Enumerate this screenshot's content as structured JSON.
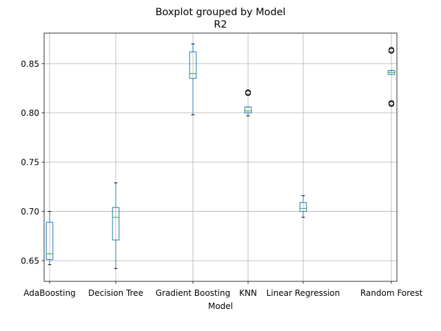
{
  "chart_data": {
    "type": "boxplot",
    "suptitle": "Boxplot grouped by Model",
    "title": "R2",
    "xlabel": "Model",
    "ylabel": "",
    "ylim": [
      0.629,
      0.881
    ],
    "yticks": [
      0.65,
      0.7,
      0.75,
      0.8,
      0.85
    ],
    "ytick_labels": [
      "0.65",
      "0.70",
      "0.75",
      "0.80",
      "0.85"
    ],
    "grid": true,
    "categories": [
      "AdaBoosting",
      "Decision Tree",
      "Gradient Boosting",
      "KNN",
      "Linear Regression",
      "Random Forest"
    ],
    "boxes": [
      {
        "name": "AdaBoosting",
        "whisker_low": 0.646,
        "q1": 0.651,
        "median": 0.657,
        "q3": 0.689,
        "whisker_high": 0.7,
        "outliers": []
      },
      {
        "name": "Decision Tree",
        "whisker_low": 0.642,
        "q1": 0.671,
        "median": 0.694,
        "q3": 0.704,
        "whisker_high": 0.729,
        "outliers": []
      },
      {
        "name": "Gradient Boosting",
        "whisker_low": 0.798,
        "q1": 0.835,
        "median": 0.84,
        "q3": 0.862,
        "whisker_high": 0.87,
        "outliers": []
      },
      {
        "name": "KNN",
        "whisker_low": 0.797,
        "q1": 0.8,
        "median": 0.802,
        "q3": 0.806,
        "whisker_high": 0.806,
        "outliers": [
          0.82,
          0.821
        ]
      },
      {
        "name": "Linear Regression",
        "whisker_low": 0.694,
        "q1": 0.7,
        "median": 0.703,
        "q3": 0.709,
        "whisker_high": 0.716,
        "outliers": []
      },
      {
        "name": "Random Forest",
        "whisker_low": 0.839,
        "q1": 0.839,
        "median": 0.841,
        "q3": 0.843,
        "whisker_high": 0.843,
        "outliers": [
          0.809,
          0.81,
          0.863,
          0.864
        ]
      }
    ],
    "colors": {
      "box": "#1f77b4",
      "median": "#2ca02c",
      "grid": "#b0b0b0",
      "axes": "#000000"
    }
  }
}
